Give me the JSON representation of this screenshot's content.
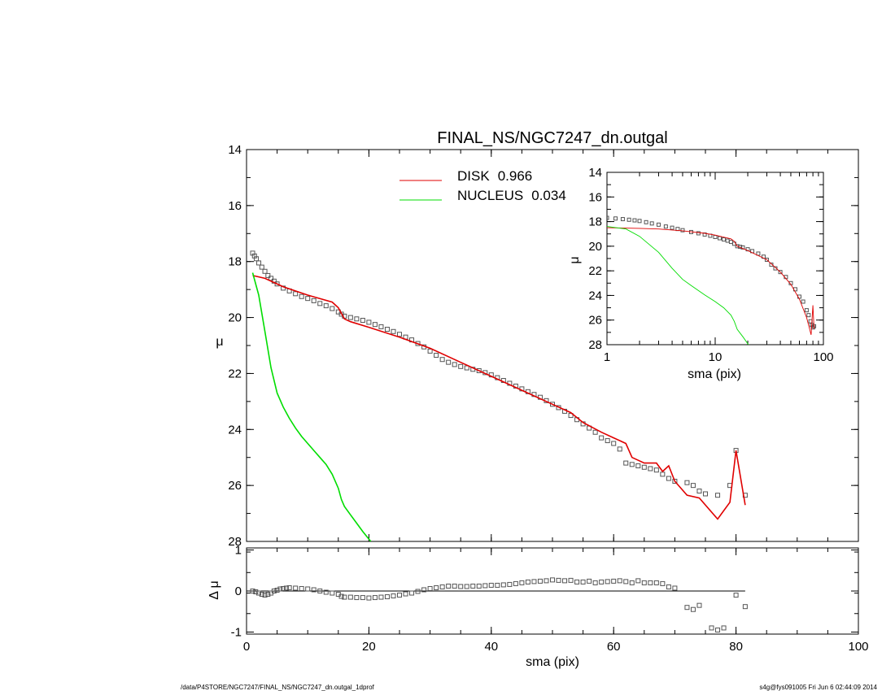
{
  "title": "FINAL_NS/NGC7247_dn.outgal",
  "footer": {
    "path": "/data/P4STORE/NGC7247/FINAL_NS/NGC7247_dn.outgal_1dprof",
    "stamp": "s4g@fys091005  Fri Jun  6 02:44:09 2014"
  },
  "colors": {
    "disk": "#e00000",
    "nucleus": "#00dd00",
    "points": "#555555"
  },
  "chart_data": [
    {
      "id": "main",
      "type": "line",
      "xlabel": "sma (pix)",
      "ylabel": "μ",
      "xlim": [
        0,
        100
      ],
      "ylim": [
        28,
        14
      ],
      "x_ticks": [
        "0",
        "20",
        "40",
        "60",
        "80",
        "100"
      ],
      "y_ticks": [
        "14",
        "16",
        "18",
        "20",
        "22",
        "24",
        "26",
        "28"
      ],
      "legend": [
        {
          "name": "DISK",
          "value": "0.966",
          "color": "#e00000"
        },
        {
          "name": "NUCLEUS",
          "value": "0.034",
          "color": "#00dd00"
        }
      ],
      "series": [
        {
          "name": "data",
          "style": "squares",
          "x": [
            1,
            1.3,
            1.6,
            2,
            2.5,
            3,
            3.5,
            4,
            4.5,
            5,
            6,
            7,
            8,
            9,
            10,
            11,
            12,
            13,
            14,
            15,
            15.5,
            16,
            17,
            18,
            19,
            20,
            21,
            22,
            23,
            24,
            25,
            26,
            27,
            28,
            29,
            30,
            31,
            32,
            33,
            34,
            35,
            36,
            37,
            38,
            39,
            40,
            41,
            42,
            43,
            44,
            45,
            46,
            47,
            48,
            49,
            50,
            51,
            52,
            53,
            54,
            55,
            56,
            57,
            58,
            59,
            60,
            61,
            62,
            63,
            64,
            65,
            66,
            67,
            68,
            69,
            70,
            72,
            73,
            74,
            75,
            77,
            79,
            80,
            81.5
          ],
          "y": [
            17.7,
            17.8,
            17.9,
            18.05,
            18.2,
            18.35,
            18.5,
            18.6,
            18.7,
            18.8,
            18.95,
            19.05,
            19.15,
            19.25,
            19.32,
            19.4,
            19.5,
            19.58,
            19.68,
            19.8,
            19.88,
            19.95,
            20.0,
            20.05,
            20.1,
            20.17,
            20.25,
            20.33,
            20.42,
            20.5,
            20.6,
            20.7,
            20.8,
            20.93,
            21.05,
            21.2,
            21.35,
            21.5,
            21.6,
            21.68,
            21.75,
            21.8,
            21.85,
            21.9,
            21.97,
            22.05,
            22.15,
            22.25,
            22.35,
            22.45,
            22.55,
            22.65,
            22.75,
            22.85,
            22.97,
            23.1,
            23.22,
            23.35,
            23.5,
            23.65,
            23.8,
            23.95,
            24.1,
            24.3,
            24.4,
            24.5,
            24.7,
            25.2,
            25.25,
            25.3,
            25.35,
            25.4,
            25.45,
            25.6,
            25.75,
            25.85,
            25.9,
            26.0,
            26.2,
            26.3,
            26.35,
            26.0,
            24.75,
            26.35
          ]
        },
        {
          "name": "DISK",
          "style": "line",
          "color": "#e00000",
          "x": [
            1,
            3,
            6,
            10,
            14,
            15,
            16,
            17,
            20,
            25,
            30,
            35,
            40,
            45,
            50,
            53,
            55,
            58,
            60,
            62,
            63,
            65,
            67,
            68,
            69,
            70,
            72,
            74,
            77,
            79,
            80,
            81.5
          ],
          "y": [
            18.5,
            18.6,
            18.9,
            19.2,
            19.45,
            19.65,
            20.05,
            20.15,
            20.35,
            20.7,
            21.1,
            21.6,
            22.1,
            22.6,
            23.1,
            23.4,
            23.75,
            24.1,
            24.3,
            24.5,
            25.0,
            25.2,
            25.2,
            25.5,
            25.3,
            25.85,
            26.35,
            26.45,
            27.2,
            26.6,
            24.75,
            26.7
          ]
        },
        {
          "name": "NUCLEUS",
          "style": "line",
          "color": "#00dd00",
          "x": [
            1,
            2,
            3,
            4,
            5,
            6,
            7,
            8,
            9,
            10,
            11,
            12,
            13,
            14,
            15,
            15.5,
            16,
            17,
            18,
            19,
            20.3
          ],
          "y": [
            18.4,
            19.2,
            20.5,
            21.8,
            22.7,
            23.2,
            23.6,
            23.95,
            24.25,
            24.5,
            24.75,
            25.0,
            25.25,
            25.6,
            26.1,
            26.5,
            26.75,
            27.05,
            27.35,
            27.65,
            28.0
          ]
        }
      ]
    },
    {
      "id": "residual",
      "type": "scatter",
      "xlabel": "sma (pix)",
      "ylabel": "Δ μ",
      "xlim": [
        0,
        100
      ],
      "ylim": [
        -1.05,
        1.05
      ],
      "x_ticks": [
        "0",
        "20",
        "40",
        "60",
        "80",
        "100"
      ],
      "y_ticks": [
        "1",
        "0",
        "-1"
      ],
      "zero_line_x": [
        1,
        81.5
      ],
      "series": [
        {
          "name": "residual",
          "style": "squares",
          "x": [
            1,
            1.5,
            2,
            2.5,
            3,
            3.5,
            4,
            4.5,
            5,
            5.5,
            6,
            6.5,
            7,
            8,
            9,
            10,
            11,
            12,
            13,
            14,
            15,
            15.5,
            16,
            17,
            18,
            19,
            20,
            21,
            22,
            23,
            24,
            25,
            26,
            27,
            28,
            29,
            30,
            31,
            32,
            33,
            34,
            35,
            36,
            37,
            38,
            39,
            40,
            41,
            42,
            43,
            44,
            45,
            46,
            47,
            48,
            49,
            50,
            51,
            52,
            53,
            54,
            55,
            56,
            57,
            58,
            59,
            60,
            61,
            62,
            63,
            64,
            65,
            66,
            67,
            68,
            69,
            70,
            71,
            72,
            73,
            74,
            75,
            76,
            77,
            78,
            79,
            80,
            81.5
          ],
          "y": [
            0,
            -0.02,
            -0.05,
            -0.08,
            -0.1,
            -0.08,
            -0.05,
            0,
            0.02,
            0.05,
            0.06,
            0.07,
            0.08,
            0.07,
            0.06,
            0.05,
            0.03,
            0.0,
            -0.03,
            -0.05,
            -0.08,
            -0.13,
            -0.15,
            -0.15,
            -0.16,
            -0.16,
            -0.17,
            -0.16,
            -0.15,
            -0.14,
            -0.12,
            -0.1,
            -0.07,
            -0.05,
            -0.01,
            0.03,
            0.06,
            0.08,
            0.1,
            0.12,
            0.12,
            0.11,
            0.11,
            0.12,
            0.12,
            0.13,
            0.14,
            0.14,
            0.15,
            0.16,
            0.18,
            0.2,
            0.22,
            0.23,
            0.24,
            0.25,
            0.27,
            0.26,
            0.25,
            0.26,
            0.22,
            0.22,
            0.24,
            0.2,
            0.22,
            0.23,
            0.24,
            0.25,
            0.23,
            0.2,
            0.25,
            0.2,
            0.2,
            0.2,
            0.18,
            0.1,
            0.07,
            null,
            -0.4,
            -0.45,
            -0.35,
            null,
            -0.9,
            -0.95,
            -0.9,
            null,
            -0.1,
            -0.38
          ]
        }
      ]
    },
    {
      "id": "inset",
      "type": "line",
      "xlabel": "sma (pix)",
      "ylabel": "μ",
      "xscale": "log",
      "xlim": [
        1,
        100
      ],
      "ylim": [
        28,
        14
      ],
      "x_ticks": [
        "1",
        "10",
        "100"
      ],
      "y_ticks": [
        "14",
        "16",
        "18",
        "20",
        "22",
        "24",
        "26",
        "28"
      ],
      "series": [
        {
          "name": "data",
          "style": "squares",
          "x": [
            1,
            1.2,
            1.4,
            1.6,
            1.8,
            2,
            2.3,
            2.6,
            3,
            3.5,
            4,
            4.5,
            5,
            6,
            7,
            8,
            9,
            10,
            11,
            12,
            13,
            14,
            15,
            16,
            17,
            18,
            20,
            22,
            25,
            28,
            30,
            33,
            36,
            40,
            45,
            50,
            55,
            60,
            65,
            70,
            73,
            76,
            78,
            80,
            82
          ],
          "y": [
            17.7,
            17.75,
            17.8,
            17.85,
            17.9,
            17.95,
            18.05,
            18.15,
            18.25,
            18.4,
            18.5,
            18.6,
            18.7,
            18.85,
            18.95,
            19.05,
            19.15,
            19.25,
            19.35,
            19.45,
            19.55,
            19.65,
            19.8,
            20.0,
            20.05,
            20.1,
            20.25,
            20.4,
            20.6,
            20.85,
            21.1,
            21.5,
            21.8,
            22.1,
            22.5,
            23.0,
            23.5,
            24.1,
            24.5,
            25.2,
            25.6,
            26.1,
            26.4,
            26.6,
            26.5
          ]
        },
        {
          "name": "DISK",
          "style": "line",
          "color": "#e00000",
          "x": [
            1,
            2,
            3,
            5,
            8,
            10,
            14,
            15,
            16,
            20,
            30,
            40,
            50,
            60,
            70,
            77,
            80,
            82
          ],
          "y": [
            18.5,
            18.55,
            18.6,
            18.75,
            18.95,
            19.1,
            19.4,
            19.6,
            20.0,
            20.35,
            21.1,
            22.1,
            23.1,
            24.3,
            25.8,
            27.2,
            24.8,
            26.7
          ]
        },
        {
          "name": "NUCLEUS",
          "style": "line",
          "color": "#00dd00",
          "x": [
            1,
            1.5,
            2,
            3,
            4,
            5,
            6,
            8,
            10,
            12,
            14,
            15,
            16,
            18,
            20.3
          ],
          "y": [
            18.4,
            18.6,
            19.2,
            20.5,
            21.8,
            22.7,
            23.2,
            23.95,
            24.5,
            25.0,
            25.6,
            26.1,
            26.75,
            27.35,
            28.0
          ]
        }
      ]
    }
  ]
}
